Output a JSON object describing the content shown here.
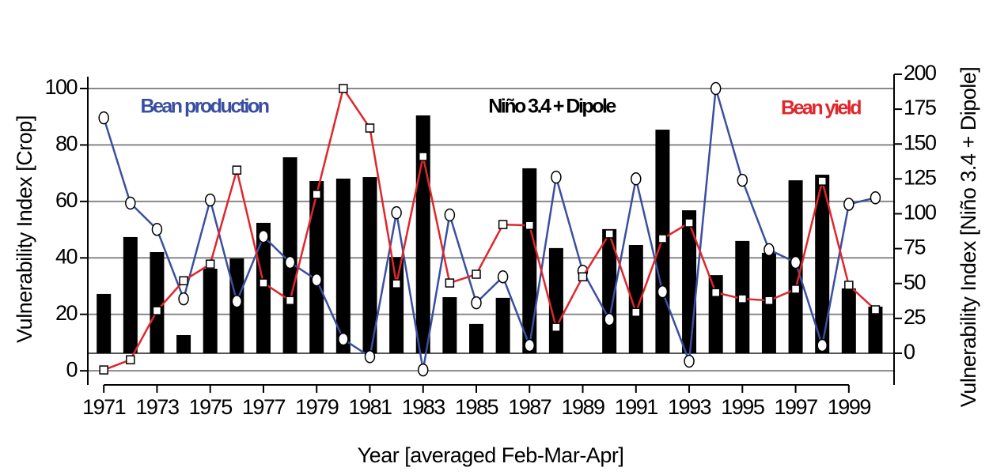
{
  "chart_data": {
    "type": "bar",
    "x_label": "Year [averaged Feb-Mar-Apr]",
    "y_label": "Vulnerability Index [Crop]",
    "y2_label": "Vulnerability Index [Niño 3.4 + Dipole]",
    "x": [
      1971,
      1972,
      1973,
      1974,
      1975,
      1976,
      1977,
      1978,
      1979,
      1980,
      1981,
      1982,
      1983,
      1984,
      1985,
      1986,
      1987,
      1988,
      1989,
      1990,
      1991,
      1992,
      1993,
      1994,
      1995,
      1996,
      1997,
      1998,
      1999,
      2000
    ],
    "series": [
      {
        "name": "Niño 3.4 + Dipole",
        "type": "bar",
        "axis": "y2",
        "color": "#000000",
        "values": [
          42.5,
          83.3,
          72.5,
          13,
          60.6,
          68,
          93.5,
          140.5,
          123.5,
          125.2,
          126.3,
          69,
          170.5,
          40.2,
          21,
          39.7,
          132.6,
          75.4,
          null,
          89,
          77.6,
          160.3,
          102.5,
          56,
          80.5,
          72,
          124,
          128,
          46.5,
          33.4
        ]
      },
      {
        "name": "Bean production",
        "type": "line",
        "marker": "circle",
        "color": "#3a4fa0",
        "values": [
          89.6,
          59.4,
          50.1,
          25.5,
          60.5,
          24.6,
          47.6,
          38.4,
          32.2,
          11.2,
          5,
          56,
          0.3,
          55.2,
          24.1,
          33.3,
          9,
          68.6,
          35.3,
          18.2,
          68,
          28,
          3.4,
          100,
          67.5,
          42.9,
          38.4,
          9,
          59,
          61.3
        ]
      },
      {
        "name": "Bean yield",
        "type": "line",
        "marker": "square",
        "color": "#e0262b",
        "values": [
          0.3,
          3.9,
          21.3,
          31.9,
          37.8,
          71.1,
          31.1,
          24.9,
          62.5,
          100,
          86,
          30.8,
          75.9,
          31.1,
          34.2,
          51.8,
          51.5,
          15.4,
          33.3,
          48.5,
          20.7,
          46.8,
          52.4,
          27.7,
          25.5,
          24.9,
          28.9,
          67.2,
          30.3,
          21.6
        ]
      }
    ],
    "xlim": [
      1970.4,
      2000.7
    ],
    "xticks": [
      1971,
      1973,
      1975,
      1977,
      1979,
      1981,
      1983,
      1985,
      1987,
      1989,
      1991,
      1993,
      1995,
      1997,
      1999
    ],
    "ylim": [
      -5,
      104.2
    ],
    "yticks": [
      0,
      20,
      40,
      60,
      80,
      100
    ],
    "y2lim": [
      -22.7,
      198.3
    ],
    "y2ticks": [
      0,
      25,
      50,
      75,
      100,
      125,
      150,
      175,
      200
    ],
    "grid": true
  }
}
